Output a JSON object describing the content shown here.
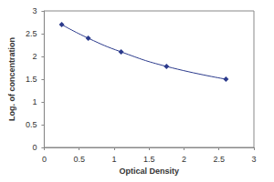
{
  "chart_data": {
    "type": "line",
    "x_label": "Optical Density",
    "y_label": "Log. of concentration",
    "x": [
      0.25,
      0.63,
      1.1,
      1.75,
      2.6
    ],
    "values": [
      2.7,
      2.4,
      2.1,
      1.78,
      1.5
    ],
    "color": "#2b3a8c",
    "marker": "diamond",
    "line_style": "solid",
    "xlim": [
      0,
      3
    ],
    "xticks": [
      0,
      0.5,
      1,
      1.5,
      2,
      2.5,
      3
    ],
    "ylim": [
      0,
      3
    ],
    "yticks": [
      0,
      0.5,
      1,
      1.5,
      2,
      2.5,
      3
    ],
    "grid": false
  }
}
